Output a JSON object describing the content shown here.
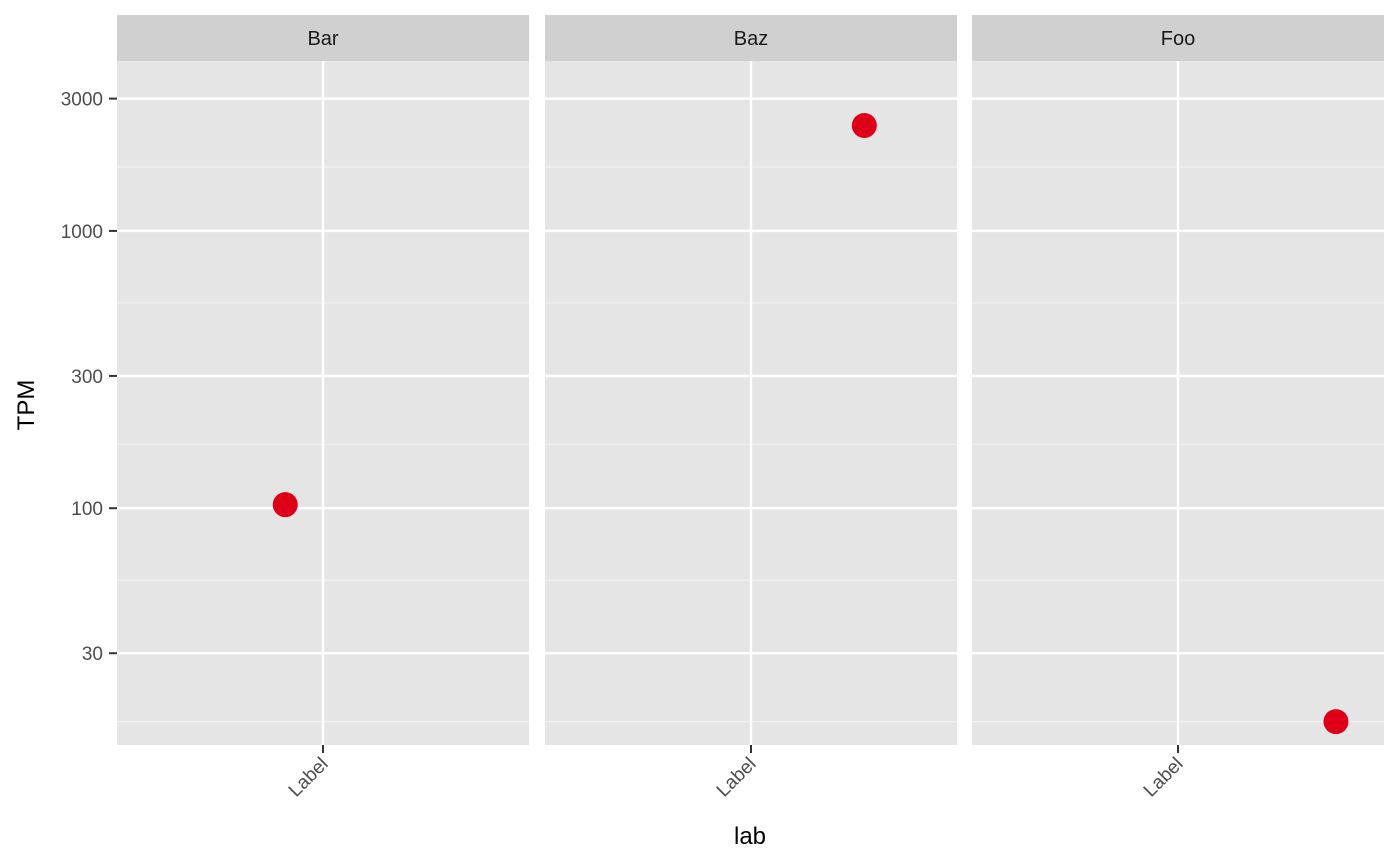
{
  "chart_data": {
    "type": "scatter",
    "layout": "faceted",
    "xlabel": "lab",
    "ylabel": "TPM",
    "y_scale": "log10",
    "ylim": [
      14,
      4100
    ],
    "yticks": [
      {
        "value": 30,
        "label": "30"
      },
      {
        "value": 100,
        "label": "100"
      },
      {
        "value": 300,
        "label": "300"
      },
      {
        "value": 1000,
        "label": "1000"
      },
      {
        "value": 3000,
        "label": "3000"
      }
    ],
    "y_minor_ticks": [
      17,
      55,
      170,
      550,
      1700
    ],
    "x_categories": [
      "Label"
    ],
    "x_tick_rotation_deg": -45,
    "grid": true,
    "panel_background": "#e5e5e5",
    "strip_background": "#d0d0d0",
    "point_color": "#dd0018",
    "facets": [
      {
        "name": "Bar",
        "tick_label": "Label",
        "points": [
          {
            "x": "Label",
            "jitter": -0.11,
            "y": 103
          }
        ]
      },
      {
        "name": "Baz",
        "tick_label": "Label",
        "points": [
          {
            "x": "Label",
            "jitter": 0.33,
            "y": 2400
          }
        ]
      },
      {
        "name": "Foo",
        "tick_label": "Label",
        "points": [
          {
            "x": "Label",
            "jitter": 0.46,
            "y": 17
          }
        ]
      }
    ]
  }
}
